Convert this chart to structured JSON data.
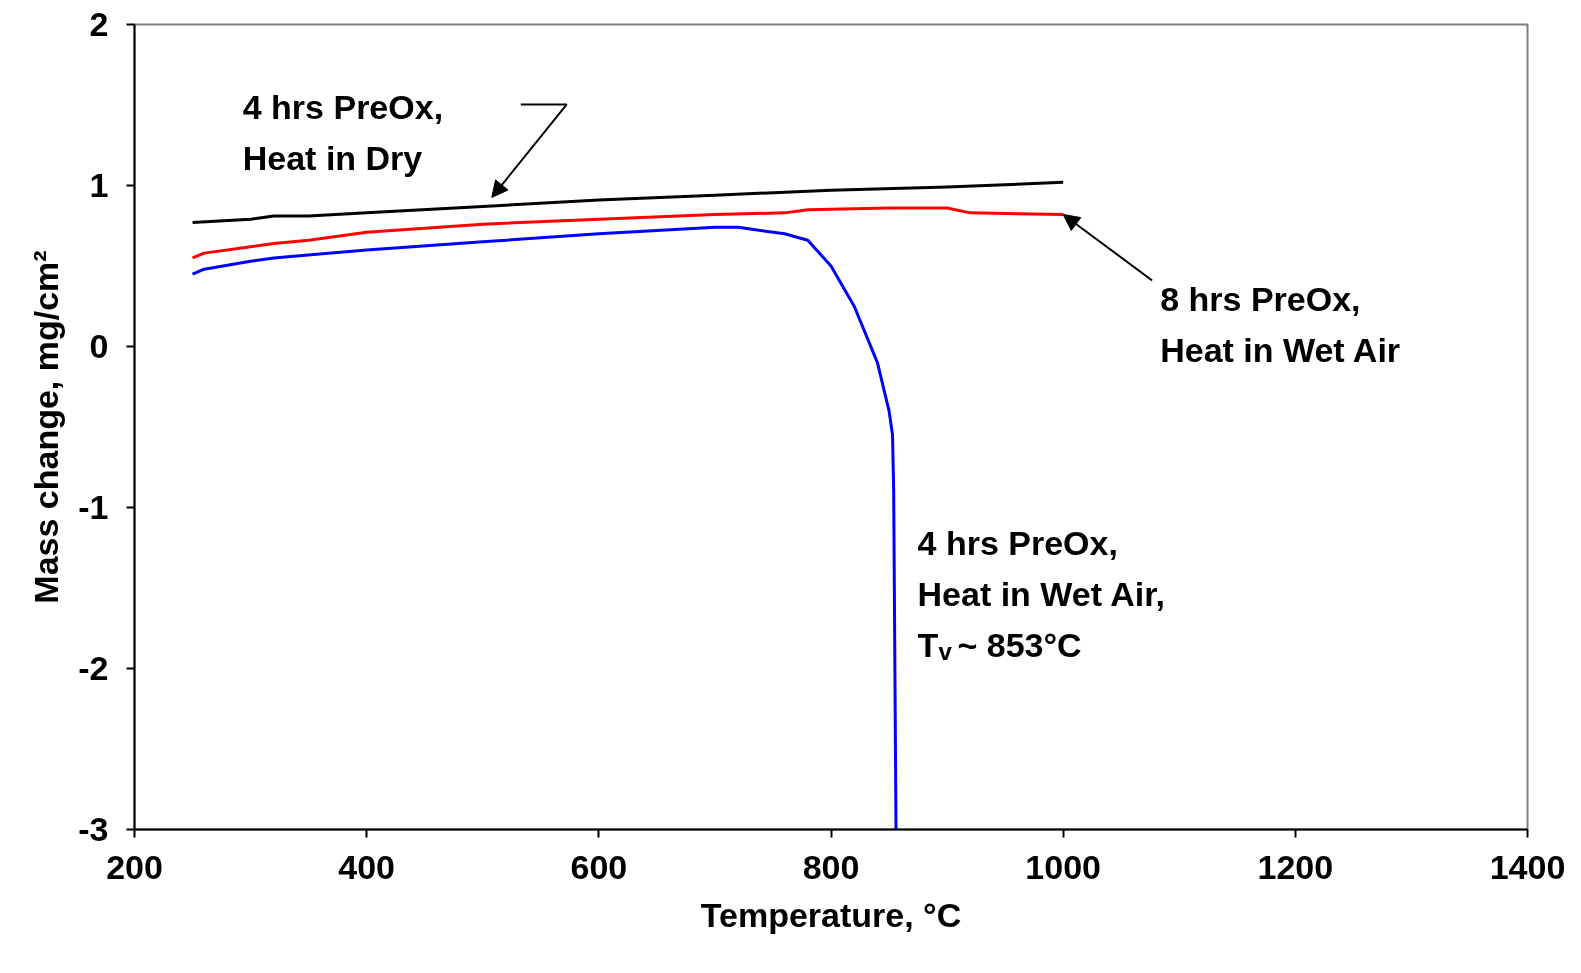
{
  "chart_data": {
    "type": "line",
    "xlabel": "Temperature, °C",
    "ylabel": "Mass change, mg/cm²",
    "xlim": [
      200,
      1400
    ],
    "ylim": [
      -3,
      2
    ],
    "xticks": [
      200,
      400,
      600,
      800,
      1000,
      1200,
      1400
    ],
    "yticks": [
      -3,
      -2,
      -1,
      0,
      1,
      2
    ],
    "grid": false,
    "line_style": "solid",
    "marker": "none",
    "series": [
      {
        "color": "#000000",
        "x": [
          250,
          300,
          320,
          350,
          400,
          500,
          600,
          700,
          800,
          900,
          1000
        ],
        "values": [
          0.77,
          0.79,
          0.81,
          0.81,
          0.83,
          0.87,
          0.91,
          0.94,
          0.97,
          0.99,
          1.02
        ]
      },
      {
        "color": "#ff0000",
        "x": [
          250,
          260,
          300,
          320,
          350,
          400,
          500,
          600,
          700,
          760,
          780,
          850,
          900,
          920,
          1000
        ],
        "values": [
          0.55,
          0.58,
          0.62,
          0.64,
          0.66,
          0.71,
          0.76,
          0.79,
          0.82,
          0.83,
          0.85,
          0.86,
          0.86,
          0.83,
          0.82
        ]
      },
      {
        "color": "#0000ff",
        "x": [
          250,
          260,
          300,
          320,
          400,
          500,
          600,
          700,
          720,
          760,
          780,
          800,
          820,
          840,
          850,
          853,
          854,
          856
        ],
        "values": [
          0.45,
          0.48,
          0.53,
          0.55,
          0.6,
          0.65,
          0.7,
          0.74,
          0.74,
          0.7,
          0.66,
          0.5,
          0.25,
          -0.1,
          -0.4,
          -0.55,
          -0.9,
          -3
        ]
      }
    ],
    "annotations": [
      {
        "text": "4 hrs PreOx,\nHeat in Dry",
        "x": 500,
        "y": 0.87
      },
      {
        "text": "8 hrs PreOx,\nHeat in Wet Air",
        "x": 1000,
        "y": 0.82
      },
      {
        "text": "4 hrs PreOx,\nHeat in Wet Air,\nT$_{v}$ ~ 853°C",
        "x": 853,
        "y": -0.9
      }
    ]
  }
}
